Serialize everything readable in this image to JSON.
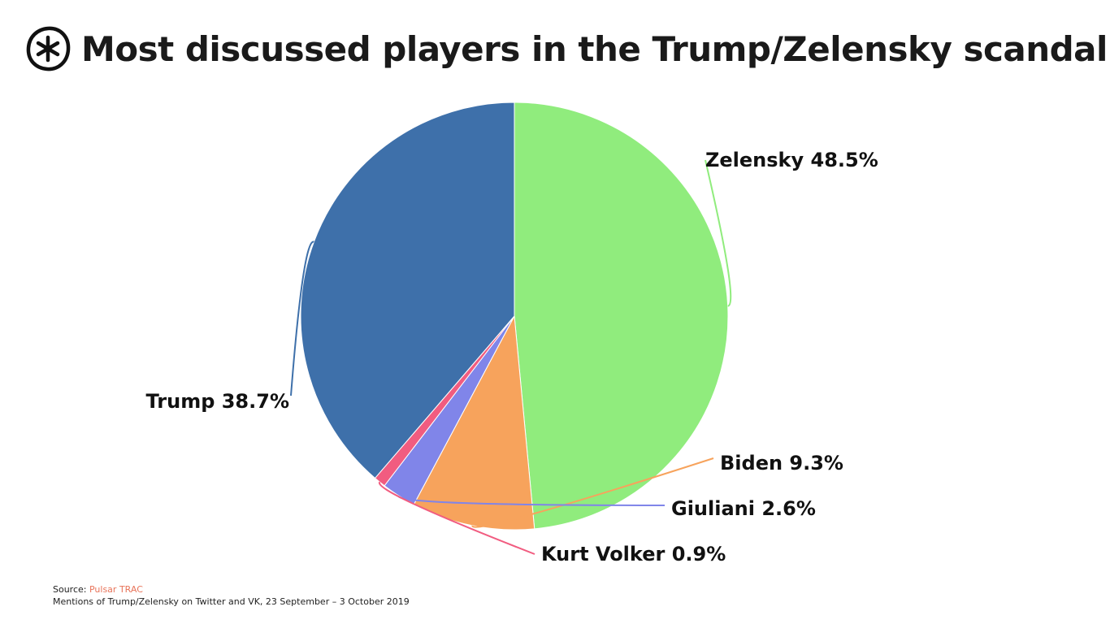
{
  "header": {
    "title": "Most discussed players in the Trump/Zelensky scandal",
    "logo_icon": "asterisk-circle-icon"
  },
  "chart_data": {
    "type": "pie",
    "slices": [
      {
        "name": "Zelensky",
        "value": 48.5,
        "label": "Zelensky 48.5%",
        "color": "#90ec7d"
      },
      {
        "name": "Biden",
        "value": 9.3,
        "label": "Biden 9.3%",
        "color": "#f7a35c"
      },
      {
        "name": "Giuliani",
        "value": 2.6,
        "label": "Giuliani 2.6%",
        "color": "#8085e9"
      },
      {
        "name": "Kurt Volker",
        "value": 0.9,
        "label": "Kurt Volker 0.9%",
        "color": "#f15c80"
      },
      {
        "name": "Trump",
        "value": 38.7,
        "label": "Trump 38.7%",
        "color": "#3e70aa"
      }
    ]
  },
  "footer": {
    "source_prefix": "Source: ",
    "source_name": "Pulsar TRAC",
    "note": "Mentions of Trump/Zelensky on Twitter and VK, 23 September – 3  October 2019"
  },
  "colors": {
    "source_accent": "#e8745a",
    "title_text": "#1a1a1a"
  }
}
